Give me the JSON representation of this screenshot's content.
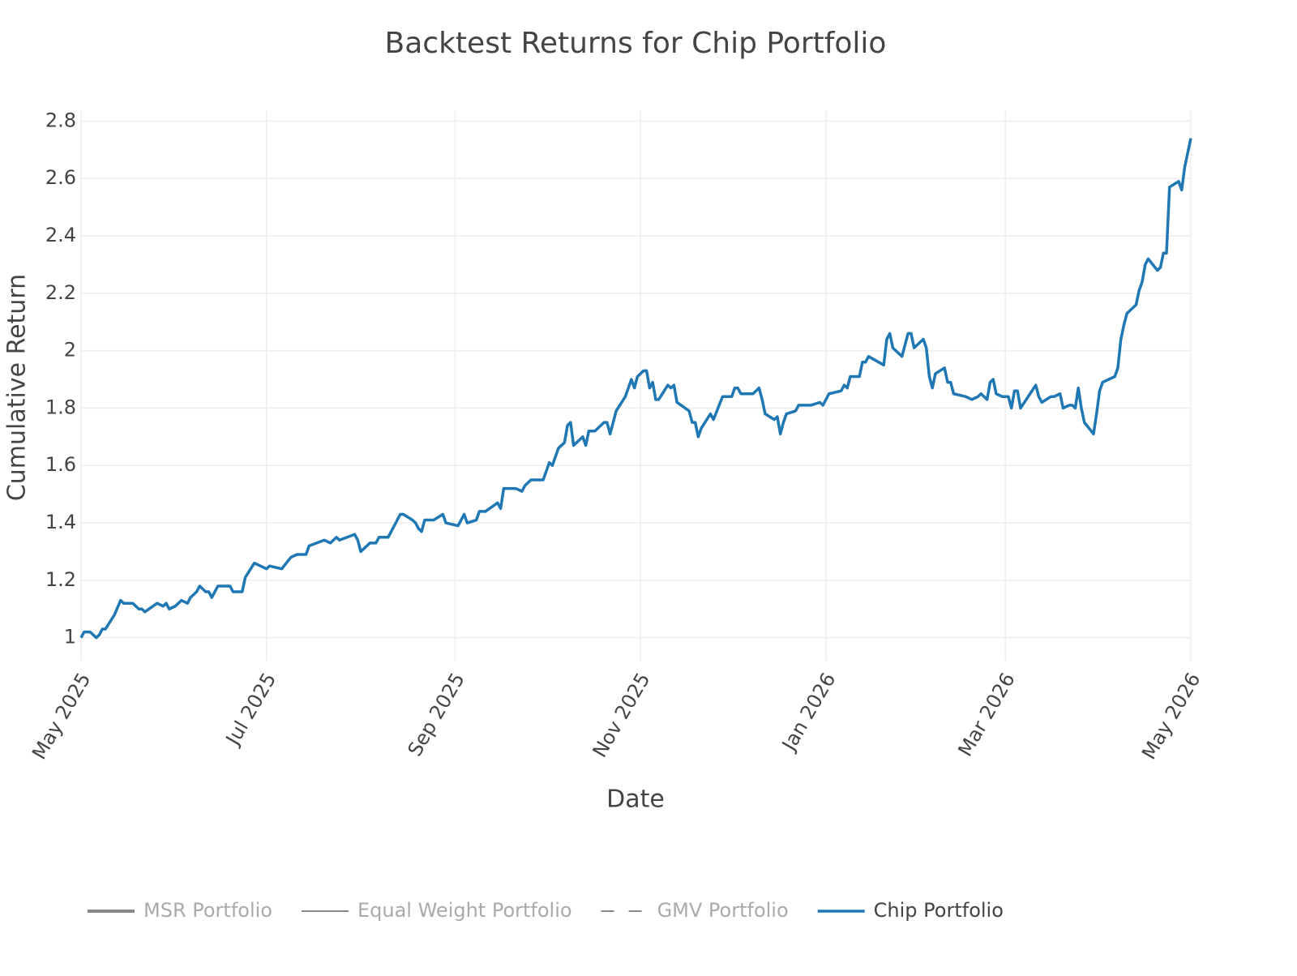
{
  "chart_data": {
    "type": "line",
    "title": "Backtest Returns for Chip Portfolio",
    "x_label": "Date",
    "y_label": "Cumulative Return",
    "xlim": [
      0,
      365
    ],
    "xticks": [
      {
        "value": 0,
        "label": "May 2025"
      },
      {
        "value": 61,
        "label": "Jul 2025"
      },
      {
        "value": 123,
        "label": "Sep 2025"
      },
      {
        "value": 184,
        "label": "Nov 2025"
      },
      {
        "value": 245,
        "label": "Jan 2026"
      },
      {
        "value": 304,
        "label": "Mar 2026"
      },
      {
        "value": 365,
        "label": "May 2026"
      }
    ],
    "ylim": [
      0.92,
      2.835
    ],
    "yticks": [
      1,
      1.2,
      1.4,
      1.6,
      1.8,
      2,
      2.2,
      2.4,
      2.6,
      2.8
    ],
    "grid": true,
    "legend_position": "bottom",
    "legend": [
      {
        "name": "MSR Portfolio",
        "color": "#888888",
        "width": 4,
        "dash": "solid",
        "visible": false
      },
      {
        "name": "Equal Weight Portfolio",
        "color": "#888888",
        "width": 2,
        "dash": "solid",
        "visible": false
      },
      {
        "name": "GMV Portfolio",
        "color": "#888888",
        "width": 2,
        "dash": "dash",
        "visible": false
      },
      {
        "name": "Chip Portfolio",
        "color": "#1f77b4",
        "width": 3.5,
        "dash": "solid",
        "visible": true
      }
    ],
    "series": [
      {
        "name": "Chip Portfolio",
        "color": "#1f77b4",
        "x": [
          0,
          1,
          3,
          5,
          6,
          7,
          8,
          11,
          13,
          14,
          15,
          17,
          19,
          20,
          21,
          25,
          27,
          28,
          29,
          31,
          33,
          35,
          36,
          38,
          39,
          41,
          42,
          43,
          45,
          47,
          49,
          50,
          53,
          54,
          57,
          59,
          61,
          62,
          66,
          69,
          71,
          74,
          75,
          80,
          82,
          84,
          85,
          90,
          91,
          92,
          95,
          97,
          98,
          101,
          105,
          106,
          109,
          110,
          111,
          112,
          113,
          116,
          119,
          120,
          124,
          126,
          127,
          130,
          131,
          133,
          137,
          138,
          139,
          141,
          143,
          145,
          146,
          148,
          151,
          152,
          154,
          155,
          157,
          159,
          160,
          161,
          162,
          165,
          166,
          167,
          169,
          172,
          173,
          174,
          175,
          176,
          179,
          181,
          182,
          183,
          185,
          186,
          187,
          188,
          189,
          190,
          193,
          194,
          195,
          196,
          200,
          201,
          202,
          203,
          204,
          207,
          208,
          211,
          214,
          215,
          216,
          217,
          218,
          221,
          223,
          224,
          225,
          228,
          229,
          230,
          231,
          232,
          235,
          236,
          240,
          243,
          244,
          246,
          250,
          251,
          252,
          253,
          256,
          257,
          258,
          259,
          264,
          265,
          266,
          267,
          270,
          272,
          273,
          274,
          277,
          278,
          279,
          280,
          281,
          284,
          285,
          286,
          287,
          291,
          293,
          295,
          296,
          298,
          299,
          300,
          301,
          303,
          305,
          306,
          307,
          308,
          309,
          314,
          315,
          316,
          319,
          320,
          322,
          323,
          325,
          326,
          327,
          328,
          329,
          330,
          333,
          334,
          335,
          336,
          340,
          341,
          342,
          343,
          344,
          347,
          348,
          349,
          350,
          351,
          354,
          355,
          356,
          357,
          358,
          361,
          362,
          363,
          365
        ],
        "values": [
          1.0,
          1.02,
          1.02,
          1.0,
          1.01,
          1.03,
          1.03,
          1.08,
          1.13,
          1.12,
          1.12,
          1.12,
          1.1,
          1.1,
          1.09,
          1.12,
          1.11,
          1.12,
          1.1,
          1.11,
          1.13,
          1.12,
          1.14,
          1.16,
          1.18,
          1.16,
          1.16,
          1.14,
          1.18,
          1.18,
          1.18,
          1.16,
          1.16,
          1.21,
          1.26,
          1.25,
          1.24,
          1.25,
          1.24,
          1.28,
          1.29,
          1.29,
          1.32,
          1.34,
          1.33,
          1.35,
          1.34,
          1.36,
          1.34,
          1.3,
          1.33,
          1.33,
          1.35,
          1.35,
          1.43,
          1.43,
          1.41,
          1.4,
          1.38,
          1.37,
          1.41,
          1.41,
          1.43,
          1.4,
          1.39,
          1.43,
          1.4,
          1.41,
          1.44,
          1.44,
          1.47,
          1.45,
          1.52,
          1.52,
          1.52,
          1.51,
          1.53,
          1.55,
          1.55,
          1.55,
          1.61,
          1.6,
          1.66,
          1.68,
          1.74,
          1.75,
          1.67,
          1.7,
          1.67,
          1.72,
          1.72,
          1.75,
          1.75,
          1.71,
          1.75,
          1.79,
          1.84,
          1.9,
          1.87,
          1.91,
          1.93,
          1.93,
          1.87,
          1.89,
          1.83,
          1.83,
          1.88,
          1.87,
          1.88,
          1.82,
          1.79,
          1.75,
          1.75,
          1.7,
          1.73,
          1.78,
          1.76,
          1.84,
          1.84,
          1.87,
          1.87,
          1.85,
          1.85,
          1.85,
          1.87,
          1.83,
          1.78,
          1.76,
          1.77,
          1.71,
          1.75,
          1.78,
          1.79,
          1.81,
          1.81,
          1.82,
          1.81,
          1.85,
          1.86,
          1.88,
          1.87,
          1.91,
          1.91,
          1.96,
          1.96,
          1.98,
          1.95,
          2.04,
          2.06,
          2.01,
          1.98,
          2.06,
          2.06,
          2.01,
          2.04,
          2.01,
          1.91,
          1.87,
          1.92,
          1.94,
          1.89,
          1.89,
          1.85,
          1.84,
          1.83,
          1.84,
          1.85,
          1.83,
          1.89,
          1.9,
          1.85,
          1.84,
          1.84,
          1.8,
          1.86,
          1.86,
          1.8,
          1.88,
          1.84,
          1.82,
          1.84,
          1.84,
          1.85,
          1.8,
          1.81,
          1.81,
          1.8,
          1.87,
          1.8,
          1.75,
          1.71,
          1.78,
          1.86,
          1.89,
          1.91,
          1.94,
          2.04,
          2.09,
          2.13,
          2.16,
          2.21,
          2.24,
          2.3,
          2.32,
          2.28,
          2.29,
          2.34,
          2.34,
          2.57,
          2.59,
          2.56,
          2.64,
          2.74
        ]
      }
    ]
  }
}
